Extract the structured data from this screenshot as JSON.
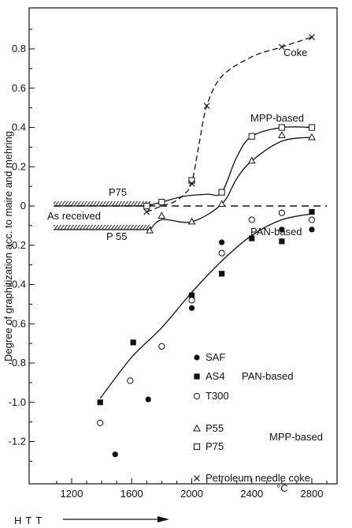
{
  "chart_data": {
    "type": "scatter",
    "title": "",
    "xlabel": "°C",
    "ylabel": "Degree of graphitization acc. to maire and mehring",
    "x_arrow_label": "HTT",
    "xlim": [
      1020,
      2900
    ],
    "ylim": [
      -1.38,
      0.97
    ],
    "x_ticks": [
      1200,
      1600,
      2000,
      2400,
      2800
    ],
    "y_ticks": [
      0.8,
      0.6,
      0.4,
      0.2,
      0,
      -0.2,
      -0.4,
      -0.6,
      -0.8,
      -1.0,
      -1.2
    ],
    "y_tick_labels": [
      "0.8",
      "0.6",
      "0.4",
      "0.2",
      "0",
      "-0.2",
      "-0.4",
      "-0.6",
      "-0.8",
      "-1.0",
      "-1.2"
    ],
    "grid": false,
    "legend_position": "bottom-right",
    "legend_groups": {
      "pan": "PAN-based",
      "mpp": "MPP-based"
    },
    "series": [
      {
        "name": "SAF",
        "marker": "filled-circle",
        "group": "pan",
        "points": [
          [
            1490,
            -1.265
          ],
          [
            1710,
            -0.985
          ],
          [
            2000,
            -0.52
          ],
          [
            2200,
            -0.185
          ],
          [
            2600,
            -0.12
          ],
          [
            2800,
            -0.12
          ]
        ]
      },
      {
        "name": "AS4",
        "marker": "filled-square",
        "group": "pan",
        "points": [
          [
            1390,
            -1.0
          ],
          [
            1610,
            -0.695
          ],
          [
            2000,
            -0.455
          ],
          [
            2200,
            -0.345
          ],
          [
            2400,
            -0.165
          ],
          [
            2600,
            -0.18
          ],
          [
            2800,
            -0.03
          ]
        ]
      },
      {
        "name": "T300",
        "marker": "open-circle",
        "group": "pan",
        "points": [
          [
            1390,
            -1.105
          ],
          [
            1590,
            -0.89
          ],
          [
            1800,
            -0.715
          ],
          [
            2000,
            -0.48
          ],
          [
            2200,
            -0.24
          ],
          [
            2400,
            -0.07
          ],
          [
            2600,
            -0.035
          ],
          [
            2800,
            -0.07
          ]
        ]
      },
      {
        "name": "P55",
        "marker": "open-triangle",
        "group": "mpp",
        "points": [
          [
            1720,
            -0.125
          ],
          [
            1800,
            -0.05
          ],
          [
            2000,
            -0.08
          ],
          [
            2200,
            0.01
          ],
          [
            2400,
            0.23
          ],
          [
            2600,
            0.36
          ],
          [
            2800,
            0.35
          ]
        ]
      },
      {
        "name": "P75",
        "marker": "open-square",
        "group": "mpp",
        "points": [
          [
            1700,
            0.0
          ],
          [
            1800,
            0.02
          ],
          [
            2000,
            0.13
          ],
          [
            2200,
            0.07
          ],
          [
            2400,
            0.355
          ],
          [
            2600,
            0.4
          ],
          [
            2800,
            0.4
          ]
        ]
      },
      {
        "name": "Petroleum needle coke",
        "marker": "x",
        "group": "",
        "points": [
          [
            1700,
            -0.03
          ],
          [
            2000,
            0.115
          ],
          [
            2100,
            0.51
          ],
          [
            2600,
            0.81
          ],
          [
            2800,
            0.86
          ]
        ]
      }
    ],
    "curves": [
      {
        "label": "Coke",
        "style": "dashed",
        "points": [
          [
            1700,
            -0.03
          ],
          [
            1800,
            0.0
          ],
          [
            1880,
            0.02
          ],
          [
            1950,
            0.06
          ],
          [
            2000,
            0.12
          ],
          [
            2050,
            0.32
          ],
          [
            2100,
            0.51
          ],
          [
            2200,
            0.66
          ],
          [
            2400,
            0.76
          ],
          [
            2600,
            0.81
          ],
          [
            2800,
            0.86
          ]
        ]
      },
      {
        "label": "MPP-based",
        "style": "solid",
        "points": [
          [
            1700,
            0.0
          ],
          [
            1800,
            0.02
          ],
          [
            1950,
            0.05
          ],
          [
            2100,
            0.06
          ],
          [
            2200,
            0.07
          ],
          [
            2300,
            0.25
          ],
          [
            2400,
            0.355
          ],
          [
            2600,
            0.4
          ],
          [
            2800,
            0.4
          ]
        ]
      },
      {
        "label": "",
        "style": "solid",
        "points": [
          [
            1720,
            -0.125
          ],
          [
            1800,
            -0.07
          ],
          [
            2000,
            -0.08
          ],
          [
            2200,
            0.01
          ],
          [
            2300,
            0.14
          ],
          [
            2400,
            0.23
          ],
          [
            2600,
            0.33
          ],
          [
            2800,
            0.35
          ]
        ]
      },
      {
        "label": "PAN-based",
        "style": "solid",
        "points": [
          [
            1390,
            -0.98
          ],
          [
            1600,
            -0.77
          ],
          [
            1800,
            -0.62
          ],
          [
            2000,
            -0.44
          ],
          [
            2200,
            -0.28
          ],
          [
            2400,
            -0.15
          ],
          [
            2600,
            -0.07
          ],
          [
            2800,
            -0.04
          ]
        ]
      }
    ],
    "zero_line": {
      "y": 0,
      "style": "long-dashed",
      "x_from": 1080,
      "x_to": 2900
    },
    "as_received": {
      "label": "As received",
      "p75": {
        "label": "P75",
        "y": 0.0,
        "x_from": 1080,
        "x_to": 1730
      },
      "p55": {
        "label": "P 55",
        "y": -0.12,
        "x_from": 1080,
        "x_to": 1730
      }
    }
  }
}
